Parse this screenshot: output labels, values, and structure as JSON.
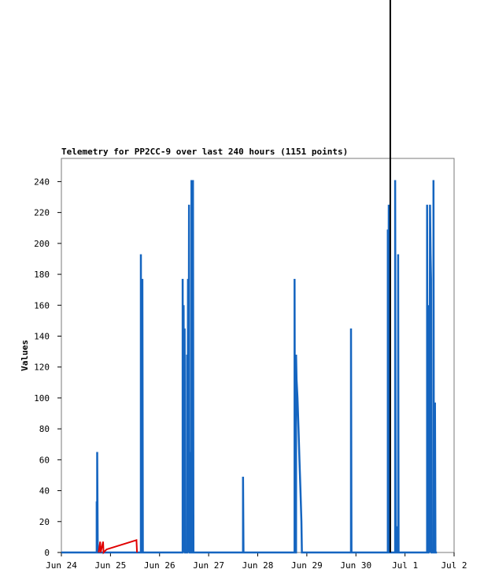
{
  "chart_data": {
    "type": "line",
    "title": "Telemetry for PP2CC-9 over last 240 hours (1151 points)",
    "xlabel": "",
    "ylabel": "Values",
    "ylim": [
      0,
      255
    ],
    "yticks": [
      0,
      20,
      40,
      60,
      80,
      100,
      120,
      140,
      160,
      180,
      200,
      220,
      240
    ],
    "xlim": [
      0,
      8
    ],
    "xticks": [
      {
        "x": 0,
        "label": "Jun 24"
      },
      {
        "x": 1,
        "label": "Jun 25"
      },
      {
        "x": 2,
        "label": "Jun 26"
      },
      {
        "x": 3,
        "label": "Jun 27"
      },
      {
        "x": 4,
        "label": "Jun 28"
      },
      {
        "x": 5,
        "label": "Jun 29"
      },
      {
        "x": 6,
        "label": "Jun 30"
      },
      {
        "x": 7,
        "label": "Jul 1"
      },
      {
        "x": 8,
        "label": "Jul 2"
      }
    ],
    "grid": false,
    "legend": "none",
    "now_marker_x": 6.7,
    "colors": {
      "blue": "#1565c0",
      "red": "#e00000",
      "marker": "#000000"
    },
    "series": [
      {
        "color": "#1565c0",
        "points": [
          [
            0,
            0
          ],
          [
            0.72,
            0
          ],
          [
            0.72,
            33
          ],
          [
            0.73,
            0
          ],
          [
            0.73,
            65
          ],
          [
            0.74,
            0
          ],
          [
            1.62,
            0
          ],
          [
            1.62,
            193
          ],
          [
            1.63,
            0
          ],
          [
            1.65,
            0
          ],
          [
            1.65,
            177
          ],
          [
            1.66,
            0
          ],
          [
            2.47,
            0
          ],
          [
            2.47,
            177
          ],
          [
            2.48,
            0
          ],
          [
            2.49,
            160
          ],
          [
            2.5,
            0
          ],
          [
            2.51,
            145
          ],
          [
            2.52,
            0
          ],
          [
            2.56,
            0
          ],
          [
            2.56,
            128
          ],
          [
            2.57,
            0
          ],
          [
            2.58,
            177
          ],
          [
            2.59,
            0
          ],
          [
            2.6,
            225
          ],
          [
            2.61,
            0
          ],
          [
            2.64,
            0
          ],
          [
            2.64,
            65
          ],
          [
            2.65,
            0
          ],
          [
            2.65,
            241
          ],
          [
            2.66,
            0
          ],
          [
            2.68,
            0
          ],
          [
            2.68,
            241
          ],
          [
            2.69,
            0
          ],
          [
            3.7,
            0
          ],
          [
            3.7,
            49
          ],
          [
            3.71,
            0
          ],
          [
            4.75,
            0
          ],
          [
            4.75,
            177
          ],
          [
            4.76,
            0
          ],
          [
            4.78,
            0
          ],
          [
            4.78,
            128
          ],
          [
            4.79,
            112
          ],
          [
            4.81,
            100
          ],
          [
            4.83,
            80
          ],
          [
            4.85,
            60
          ],
          [
            4.87,
            40
          ],
          [
            4.89,
            20
          ],
          [
            4.9,
            0
          ],
          [
            5.9,
            0
          ],
          [
            5.9,
            145
          ],
          [
            5.91,
            0
          ],
          [
            6.65,
            0
          ],
          [
            6.65,
            209
          ],
          [
            6.66,
            0
          ],
          [
            6.67,
            225
          ],
          [
            6.68,
            0
          ],
          [
            6.8,
            0
          ],
          [
            6.8,
            241
          ],
          [
            6.81,
            0
          ],
          [
            6.82,
            0
          ],
          [
            6.82,
            17
          ],
          [
            6.83,
            0
          ],
          [
            6.86,
            0
          ],
          [
            6.86,
            193
          ],
          [
            6.87,
            0
          ],
          [
            7.45,
            0
          ],
          [
            7.45,
            225
          ],
          [
            7.46,
            0
          ],
          [
            7.48,
            0
          ],
          [
            7.48,
            49
          ],
          [
            7.49,
            160
          ],
          [
            7.5,
            0
          ],
          [
            7.51,
            225
          ],
          [
            7.52,
            193
          ],
          [
            7.53,
            177
          ],
          [
            7.54,
            0
          ],
          [
            7.58,
            0
          ],
          [
            7.58,
            241
          ],
          [
            7.59,
            0
          ],
          [
            7.61,
            0
          ],
          [
            7.61,
            97
          ],
          [
            7.62,
            0
          ],
          [
            7.65,
            0
          ]
        ]
      },
      {
        "color": "#e00000",
        "points": [
          [
            0.76,
            0
          ],
          [
            0.79,
            7
          ],
          [
            0.8,
            0
          ],
          [
            0.85,
            7
          ],
          [
            0.86,
            0
          ],
          [
            0.92,
            2
          ],
          [
            1.53,
            8
          ],
          [
            1.54,
            0
          ]
        ]
      }
    ]
  }
}
